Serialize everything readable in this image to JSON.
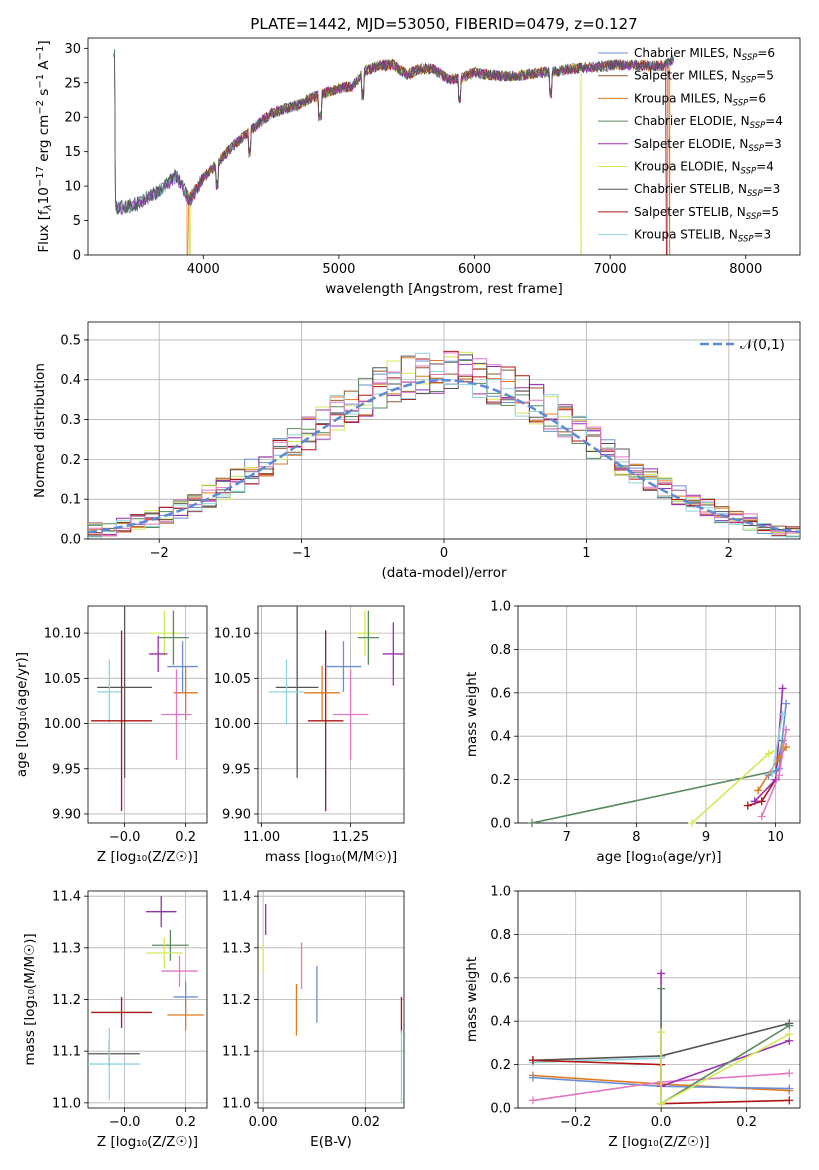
{
  "colors": {
    "Chabrier MILES": "#6b8fd6",
    "Salpeter MILES": "#8f5a2a",
    "Kroupa MILES": "#e07a1f",
    "Chabrier ELODIE": "#5a8a5f",
    "Salpeter ELODIE": "#9a2fb0",
    "Kroupa ELODIE": "#d4e85a",
    "Chabrier STELIB": "#555555",
    "Salpeter STELIB": "#b01515",
    "Kroupa STELIB": "#8fd4de",
    "pink": "#e377c2",
    "gauss": "#5b8ad6"
  },
  "chart_data": [
    {
      "id": "spectrum",
      "type": "line",
      "title": "PLATE=1442, MJD=53050, FIBERID=0479, z=0.127",
      "xlabel": "wavelength [Angstrom, rest frame]",
      "ylabel_parts": [
        "Flux [f",
        "λ",
        "10",
        "−17",
        " erg cm",
        "−2",
        " s",
        "−1",
        " A",
        "−1",
        "]"
      ],
      "xlim": [
        3150,
        8400
      ],
      "ylim": [
        0,
        31.5
      ],
      "xticks": [
        4000,
        5000,
        6000,
        7000,
        8000
      ],
      "yticks": [
        0,
        5,
        10,
        15,
        20,
        25,
        30
      ],
      "x": [
        3350,
        3500,
        3650,
        3800,
        3900,
        4000,
        4100,
        4200,
        4300,
        4400,
        4500,
        4600,
        4700,
        4800,
        4900,
        5000,
        5100,
        5200,
        5300,
        5400,
        5500,
        5600,
        5700,
        5800,
        5900,
        6000,
        6100,
        6200,
        6300,
        6400,
        6500,
        6600,
        6700,
        6800,
        6900,
        7000,
        7100,
        7200,
        7300,
        7400,
        7500
      ],
      "y": [
        6.8,
        7.3,
        9.0,
        11.5,
        8.0,
        11.2,
        13.2,
        15.5,
        17.2,
        19.0,
        20.5,
        21.2,
        21.8,
        22.8,
        23.5,
        24.2,
        24.5,
        26.8,
        27.5,
        27.6,
        26.2,
        27.0,
        27.0,
        25.5,
        25.6,
        26.5,
        26.2,
        26.0,
        26.0,
        26.2,
        26.5,
        26.6,
        27.0,
        27.2,
        27.3,
        27.5,
        27.6,
        27.6,
        27.4,
        27.5,
        29.0
      ],
      "dropouts": [
        {
          "series": "Kroupa MILES",
          "x": 3880
        },
        {
          "series": "Kroupa ELODIE",
          "x": 3900
        },
        {
          "series": "Kroupa ELODIE",
          "x": 6790
        },
        {
          "series": "Salpeter STELIB",
          "x": 7420
        },
        {
          "series": "Kroupa MILES",
          "x": 7440
        }
      ],
      "legend_position": "top-right",
      "legend": [
        {
          "name": "Chabrier MILES",
          "n": "6"
        },
        {
          "name": "Salpeter MILES",
          "n": "5"
        },
        {
          "name": "Kroupa MILES",
          "n": "6"
        },
        {
          "name": "Chabrier ELODIE",
          "n": "4"
        },
        {
          "name": "Salpeter ELODIE",
          "n": "3"
        },
        {
          "name": "Kroupa ELODIE",
          "n": "4"
        },
        {
          "name": "Chabrier STELIB",
          "n": "3"
        },
        {
          "name": "Salpeter STELIB",
          "n": "5"
        },
        {
          "name": "Kroupa STELIB",
          "n": "3"
        }
      ],
      "legend_n_label": "N",
      "legend_n_sub": "SSP"
    },
    {
      "id": "residuals",
      "type": "bar",
      "xlabel": "(data-model)/error",
      "ylabel": "Normed distribution",
      "xlim": [
        -2.5,
        2.5
      ],
      "ylim": [
        0,
        0.545
      ],
      "xticks": [
        -2,
        -1,
        0,
        1,
        2
      ],
      "yticks": [
        0.0,
        0.1,
        0.2,
        0.3,
        0.4,
        0.5
      ],
      "bin_width": 0.1,
      "legend": "𝒩(0,1)",
      "legend_position": "top-right",
      "grid": true
    },
    {
      "id": "age_vs_Z",
      "type": "scatter",
      "xlabel": "Z [log₁₀(Z/Z☉)]",
      "ylabel": "age  [log₁₀(age/yr)]",
      "xlim": [
        -0.12,
        0.27
      ],
      "ylim": [
        9.89,
        10.13
      ],
      "xticks": [
        0.0,
        0.2
      ],
      "xticklabels": [
        "−0.0",
        "0.2"
      ],
      "yticks": [
        9.9,
        9.95,
        10.0,
        10.05,
        10.1
      ],
      "points": [
        {
          "series": "Chabrier STELIB",
          "x": 0.0,
          "xe": 0.09,
          "y": 10.04,
          "ye": 0.1
        },
        {
          "series": "Kroupa STELIB",
          "x": -0.05,
          "xe": 0.04,
          "y": 10.035,
          "ye": 0.036
        },
        {
          "series": "Salpeter STELIB",
          "x": -0.01,
          "xe": 0.1,
          "y": 10.003,
          "ye": 0.1
        },
        {
          "series": "Kroupa ELODIE",
          "x": 0.13,
          "xe": 0.05,
          "y": 10.1,
          "ye": 0.025
        },
        {
          "series": "Chabrier ELODIE",
          "x": 0.16,
          "xe": 0.05,
          "y": 10.095,
          "ye": 0.03
        },
        {
          "series": "Salpeter ELODIE",
          "x": 0.11,
          "xe": 0.03,
          "y": 10.077,
          "ye": 0.02
        },
        {
          "series": "Chabrier MILES",
          "x": 0.19,
          "xe": 0.05,
          "y": 10.063,
          "ye": 0.028
        },
        {
          "series": "Kroupa MILES",
          "x": 0.2,
          "xe": 0.04,
          "y": 10.034,
          "ye": 0.03
        },
        {
          "series": "pink",
          "x": 0.17,
          "xe": 0.05,
          "y": 10.01,
          "ye": 0.05
        }
      ]
    },
    {
      "id": "age_vs_mass",
      "type": "scatter",
      "xlabel": "mass [log₁₀(M/M☉)]",
      "ylabel": "",
      "xlim": [
        10.99,
        11.4
      ],
      "ylim": [
        9.89,
        10.13
      ],
      "xticks": [
        11.0,
        11.25
      ],
      "xticklabels": [
        "11.00",
        "11.25"
      ],
      "yticks": [
        9.9,
        9.95,
        10.0,
        10.05,
        10.1
      ],
      "points": [
        {
          "series": "Chabrier STELIB",
          "x": 11.1,
          "xe": 0.06,
          "y": 10.04,
          "ye": 0.1
        },
        {
          "series": "Kroupa STELIB",
          "x": 11.07,
          "xe": 0.05,
          "y": 10.035,
          "ye": 0.036
        },
        {
          "series": "Salpeter STELIB",
          "x": 11.18,
          "xe": 0.05,
          "y": 10.003,
          "ye": 0.1
        },
        {
          "series": "Kroupa MILES",
          "x": 11.17,
          "xe": 0.05,
          "y": 10.034,
          "ye": 0.03
        },
        {
          "series": "Chabrier MILES",
          "x": 11.23,
          "xe": 0.05,
          "y": 10.063,
          "ye": 0.028
        },
        {
          "series": "pink",
          "x": 11.25,
          "xe": 0.05,
          "y": 10.01,
          "ye": 0.05
        },
        {
          "series": "Kroupa ELODIE",
          "x": 11.29,
          "xe": 0.03,
          "y": 10.1,
          "ye": 0.025
        },
        {
          "series": "Chabrier ELODIE",
          "x": 11.3,
          "xe": 0.03,
          "y": 10.095,
          "ye": 0.03
        },
        {
          "series": "Salpeter ELODIE",
          "x": 11.37,
          "xe": 0.03,
          "y": 10.077,
          "ye": 0.035
        }
      ]
    },
    {
      "id": "mass_vs_Z",
      "type": "scatter",
      "xlabel": "Z [log₁₀(Z/Z☉)]",
      "ylabel": "mass [log₁₀(M/M☉)]",
      "xlim": [
        -0.12,
        0.27
      ],
      "ylim": [
        10.99,
        11.41
      ],
      "xticks": [
        0.0,
        0.2
      ],
      "xticklabels": [
        "−0.0",
        "0.2"
      ],
      "yticks": [
        11.0,
        11.1,
        11.2,
        11.3,
        11.4
      ],
      "points": [
        {
          "series": "Salpeter ELODIE",
          "x": 0.12,
          "xe": 0.05,
          "y": 11.37,
          "ye": 0.03
        },
        {
          "series": "Chabrier ELODIE",
          "x": 0.15,
          "xe": 0.06,
          "y": 11.305,
          "ye": 0.03
        },
        {
          "series": "Kroupa ELODIE",
          "x": 0.13,
          "xe": 0.06,
          "y": 11.29,
          "ye": 0.03
        },
        {
          "series": "pink",
          "x": 0.18,
          "xe": 0.06,
          "y": 11.255,
          "ye": 0.03
        },
        {
          "series": "Chabrier MILES",
          "x": 0.2,
          "xe": 0.04,
          "y": 11.205,
          "ye": 0.03
        },
        {
          "series": "Kroupa MILES",
          "x": 0.2,
          "xe": 0.06,
          "y": 11.17,
          "ye": 0.03
        },
        {
          "series": "Salpeter STELIB",
          "x": -0.01,
          "xe": 0.1,
          "y": 11.175,
          "ye": 0.03
        },
        {
          "series": "Chabrier STELIB",
          "x": -0.05,
          "xe": 0.1,
          "y": 11.095,
          "ye": 0.025
        },
        {
          "series": "Kroupa STELIB",
          "x": -0.05,
          "xe": 0.1,
          "y": 11.075,
          "ye": 0.07
        }
      ]
    },
    {
      "id": "mass_vs_EBV",
      "type": "scatter",
      "xlabel": "E(B-V)",
      "ylabel": "",
      "xlim": [
        -0.001,
        0.0275
      ],
      "ylim": [
        10.99,
        11.41
      ],
      "xticks": [
        0.0,
        0.02
      ],
      "xticklabels": [
        "0.00",
        "0.02"
      ],
      "yticks": [
        11.0,
        11.1,
        11.2,
        11.3,
        11.4
      ],
      "points": [
        {
          "series": "Salpeter ELODIE",
          "x": 0.0005,
          "y": 11.355,
          "ye": 0.03
        },
        {
          "series": "Kroupa ELODIE",
          "x": 0.0,
          "y": 11.28,
          "ye": 0.03
        },
        {
          "series": "pink",
          "x": 0.0075,
          "y": 11.265,
          "ye": 0.045
        },
        {
          "series": "Chabrier MILES",
          "x": 0.0105,
          "y": 11.21,
          "ye": 0.055
        },
        {
          "series": "Kroupa MILES",
          "x": 0.0065,
          "y": 11.18,
          "ye": 0.05
        },
        {
          "series": "Salpeter STELIB",
          "x": 0.027,
          "y": 11.17,
          "ye": 0.035
        },
        {
          "series": "Kroupa STELIB",
          "x": 0.027,
          "y": 11.07,
          "ye": 0.07
        }
      ]
    },
    {
      "id": "mw_vs_age",
      "type": "line",
      "xlabel": "age  [log₁₀(age/yr)]",
      "ylabel": "mass weight",
      "xlim": [
        6.3,
        10.35
      ],
      "ylim": [
        0,
        1.0
      ],
      "xticks": [
        7,
        8,
        9,
        10
      ],
      "yticks": [
        0.0,
        0.2,
        0.4,
        0.6,
        0.8,
        1.0
      ],
      "grid": true,
      "series": [
        {
          "series": "Chabrier ELODIE",
          "x": [
            6.5,
            10.0,
            10.1
          ],
          "y": [
            0.0,
            0.24,
            0.38
          ]
        },
        {
          "series": "Kroupa ELODIE",
          "x": [
            8.8,
            9.9,
            10.1
          ],
          "y": [
            0.0,
            0.32,
            0.35
          ]
        },
        {
          "series": "Salpeter STELIB",
          "x": [
            9.6,
            9.8,
            10.0
          ],
          "y": [
            0.08,
            0.1,
            0.2
          ]
        },
        {
          "series": "Salpeter ELODIE",
          "x": [
            9.7,
            10.0,
            10.1
          ],
          "y": [
            0.1,
            0.2,
            0.62
          ]
        },
        {
          "series": "Chabrier MILES",
          "x": [
            9.9,
            10.05,
            10.15
          ],
          "y": [
            0.22,
            0.25,
            0.55
          ]
        },
        {
          "series": "Kroupa MILES",
          "x": [
            9.75,
            10.05,
            10.15
          ],
          "y": [
            0.15,
            0.3,
            0.35
          ]
        },
        {
          "series": "pink",
          "x": [
            9.8,
            10.05,
            10.15
          ],
          "y": [
            0.03,
            0.22,
            0.43
          ]
        },
        {
          "series": "Kroupa STELIB",
          "x": [
            9.95,
            10.1
          ],
          "y": [
            0.23,
            0.5
          ]
        }
      ]
    },
    {
      "id": "mw_vs_Z",
      "type": "line",
      "xlabel": "Z [log₁₀(Z/Z☉)]",
      "ylabel": "mass weight",
      "xlim": [
        -0.335,
        0.325
      ],
      "ylim": [
        0,
        1.0
      ],
      "xticks": [
        -0.2,
        0.0,
        0.2
      ],
      "xticklabels": [
        "−0.2",
        "0.0",
        "0.2"
      ],
      "yticks": [
        0.0,
        0.2,
        0.4,
        0.6,
        0.8,
        1.0
      ],
      "grid": true,
      "series": [
        {
          "series": "Chabrier STELIB",
          "x": [
            -0.3,
            0.0,
            0.3
          ],
          "y": [
            0.22,
            0.24,
            0.39
          ]
        },
        {
          "series": "Kroupa STELIB",
          "x": [
            -0.3,
            0.0
          ],
          "y": [
            0.21,
            0.23
          ]
        },
        {
          "series": "Kroupa MILES",
          "x": [
            -0.3,
            0.0,
            0.3
          ],
          "y": [
            0.15,
            0.11,
            0.08
          ]
        },
        {
          "series": "Chabrier MILES",
          "x": [
            -0.3,
            0.0,
            0.3
          ],
          "y": [
            0.14,
            0.1,
            0.09
          ]
        },
        {
          "series": "Salpeter STELIB",
          "x": [
            -0.3,
            0.0,
            0.0,
            0.3
          ],
          "y": [
            0.22,
            0.2,
            0.02,
            0.035
          ]
        },
        {
          "series": "pink",
          "x": [
            -0.3,
            0.0,
            0.3
          ],
          "y": [
            0.035,
            0.12,
            0.16
          ]
        },
        {
          "series": "Salpeter ELODIE",
          "x": [
            0.0,
            0.0,
            0.3
          ],
          "y": [
            0.62,
            0.1,
            0.31
          ]
        },
        {
          "series": "Chabrier ELODIE",
          "x": [
            0.0,
            0.0,
            0.3
          ],
          "y": [
            0.55,
            0.02,
            0.38
          ]
        },
        {
          "series": "Kroupa ELODIE",
          "x": [
            0.0,
            0.0,
            0.3
          ],
          "y": [
            0.35,
            0.02,
            0.34
          ]
        }
      ]
    }
  ]
}
